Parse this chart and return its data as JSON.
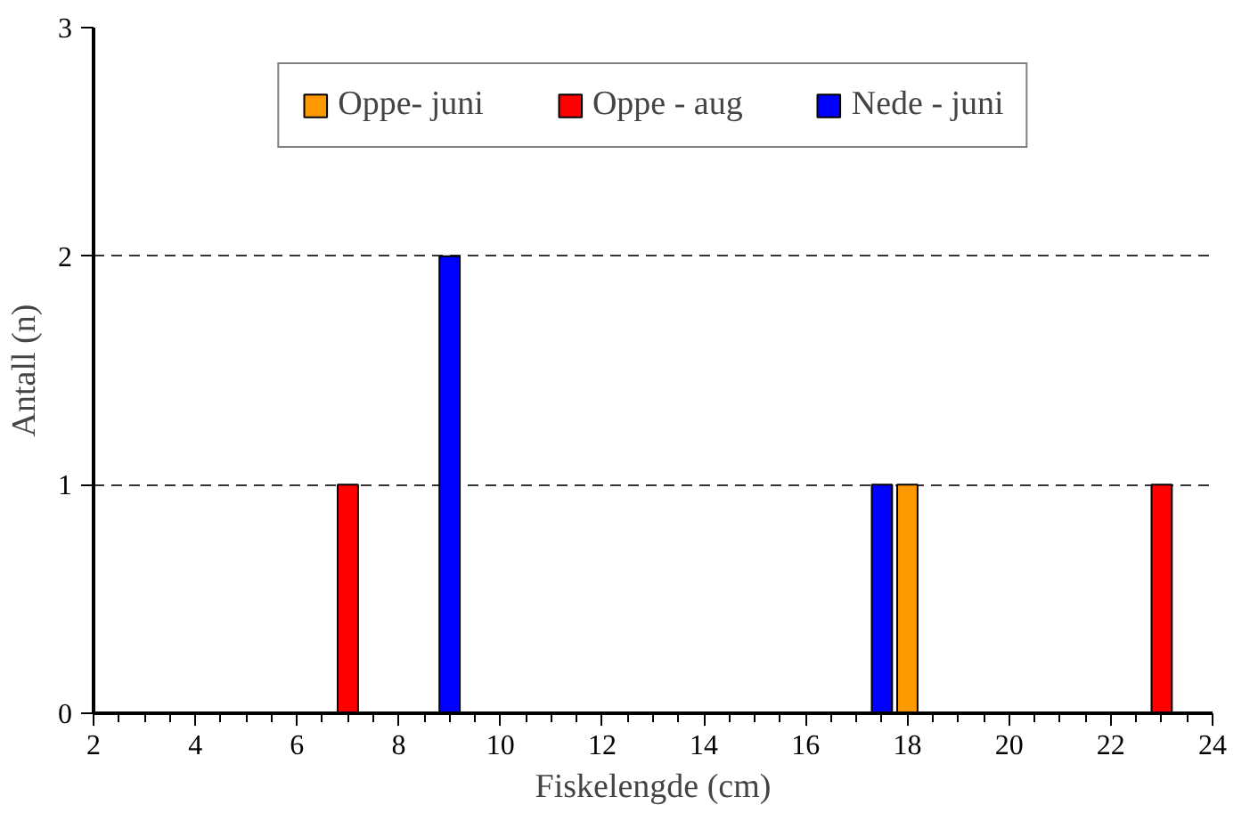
{
  "chart_data": {
    "type": "bar",
    "xlabel": "Fiskelengde (cm)",
    "ylabel": "Antall (n)",
    "series": [
      {
        "name": "Oppe- juni",
        "color": "#ff9900",
        "x": [
          18
        ],
        "values": [
          1
        ]
      },
      {
        "name": "Oppe - aug",
        "color": "#ff0000",
        "x": [
          7,
          23
        ],
        "values": [
          1,
          1
        ]
      },
      {
        "name": "Nede - juni",
        "color": "#0000ff",
        "x": [
          9,
          17.5
        ],
        "values": [
          2,
          1
        ]
      }
    ],
    "xlim": [
      2,
      24
    ],
    "xticks": [
      2,
      4,
      6,
      8,
      10,
      12,
      14,
      16,
      18,
      20,
      22,
      24
    ],
    "ylim": [
      0,
      3
    ],
    "yticks": [
      0,
      1,
      2,
      3
    ],
    "grid": "y",
    "legend": "top"
  }
}
